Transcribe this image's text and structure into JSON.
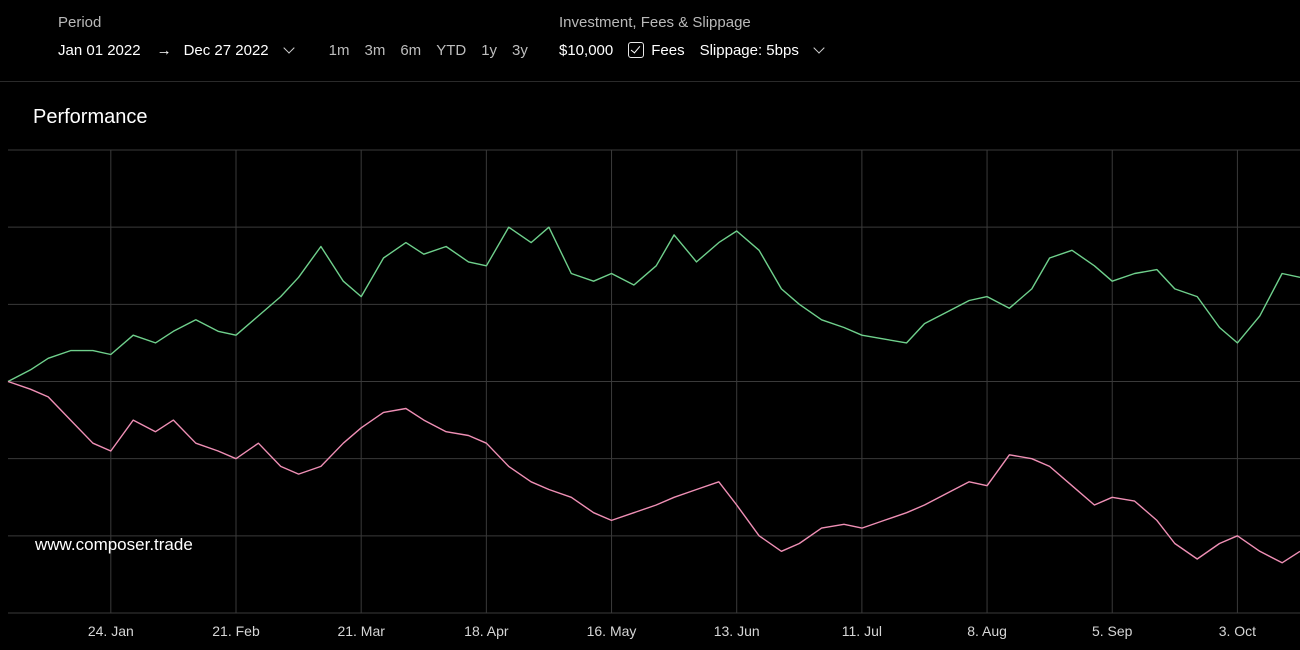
{
  "header": {
    "period_label": "Period",
    "start_date": "Jan 01 2022",
    "end_date": "Dec 27 2022",
    "arrow": "→",
    "ranges": [
      "1m",
      "3m",
      "6m",
      "YTD",
      "1y",
      "3y"
    ],
    "investment_label": "Investment, Fees & Slippage",
    "investment_value": "$10,000",
    "fees_label": "Fees",
    "fees_checked": true,
    "slippage_label": "Slippage: 5bps"
  },
  "chart_title": "Performance",
  "watermark": "www.composer.trade",
  "colors": {
    "background": "#000000",
    "grid": "#3a3a3a",
    "series_green": "#6fd08c",
    "series_pink": "#ef8fb5"
  },
  "chart_data": {
    "type": "line",
    "title": "Performance",
    "x_tick_labels": [
      "24. Jan",
      "21. Feb",
      "21. Mar",
      "18. Apr",
      "16. May",
      "13. Jun",
      "11. Jul",
      "8. Aug",
      "5. Sep",
      "3. Oct"
    ],
    "x_tick_day_index": [
      23,
      51,
      79,
      107,
      135,
      163,
      191,
      219,
      247,
      275
    ],
    "x_range_days": [
      0,
      289
    ],
    "y_range_percent": [
      -30,
      30
    ],
    "y_grid_percent": [
      -30,
      -20,
      -10,
      0,
      10,
      20,
      30
    ],
    "grid": true,
    "series": [
      {
        "color": "#6fd08c",
        "x_day": [
          0,
          5,
          9,
          14,
          19,
          23,
          28,
          33,
          37,
          42,
          47,
          51,
          56,
          61,
          65,
          70,
          75,
          79,
          84,
          89,
          93,
          98,
          103,
          107,
          112,
          117,
          121,
          126,
          131,
          135,
          140,
          145,
          149,
          154,
          159,
          163,
          168,
          173,
          177,
          182,
          187,
          191,
          196,
          201,
          205,
          210,
          215,
          219,
          224,
          229,
          233,
          238,
          243,
          247,
          252,
          257,
          261,
          266,
          271,
          275,
          280,
          285,
          289
        ],
        "y_percent": [
          0,
          1.5,
          3,
          4,
          4,
          3.5,
          6,
          5,
          6.5,
          8,
          6.5,
          6,
          8.5,
          11,
          13.5,
          17.5,
          13,
          11,
          16,
          18,
          16.5,
          17.5,
          15.5,
          15,
          20,
          18,
          20,
          14,
          13,
          14,
          12.5,
          15,
          19,
          15.5,
          18,
          19.5,
          17,
          12,
          10,
          8,
          7,
          6,
          5.5,
          5,
          7.5,
          9,
          10.5,
          11,
          9.5,
          12,
          16,
          17,
          15,
          13,
          14,
          14.5,
          12,
          11,
          7,
          5,
          8.5,
          14,
          13.5
        ]
      },
      {
        "color": "#ef8fb5",
        "x_day": [
          0,
          5,
          9,
          14,
          19,
          23,
          28,
          33,
          37,
          42,
          47,
          51,
          56,
          61,
          65,
          70,
          75,
          79,
          84,
          89,
          93,
          98,
          103,
          107,
          112,
          117,
          121,
          126,
          131,
          135,
          140,
          145,
          149,
          154,
          159,
          163,
          168,
          173,
          177,
          182,
          187,
          191,
          196,
          201,
          205,
          210,
          215,
          219,
          224,
          229,
          233,
          238,
          243,
          247,
          252,
          257,
          261,
          266,
          271,
          275,
          280,
          285,
          289
        ],
        "y_percent": [
          0,
          -1,
          -2,
          -5,
          -8,
          -9,
          -5,
          -6.5,
          -5,
          -8,
          -9,
          -10,
          -8,
          -11,
          -12,
          -11,
          -8,
          -6,
          -4,
          -3.5,
          -5,
          -6.5,
          -7,
          -8,
          -11,
          -13,
          -14,
          -15,
          -17,
          -18,
          -17,
          -16,
          -15,
          -14,
          -13,
          -16,
          -20,
          -22,
          -21,
          -19,
          -18.5,
          -19,
          -18,
          -17,
          -16,
          -14.5,
          -13,
          -13.5,
          -9.5,
          -10,
          -11,
          -13.5,
          -16,
          -15,
          -15.5,
          -18,
          -21,
          -23,
          -21,
          -20,
          -22,
          -23.5,
          -22
        ]
      }
    ]
  }
}
